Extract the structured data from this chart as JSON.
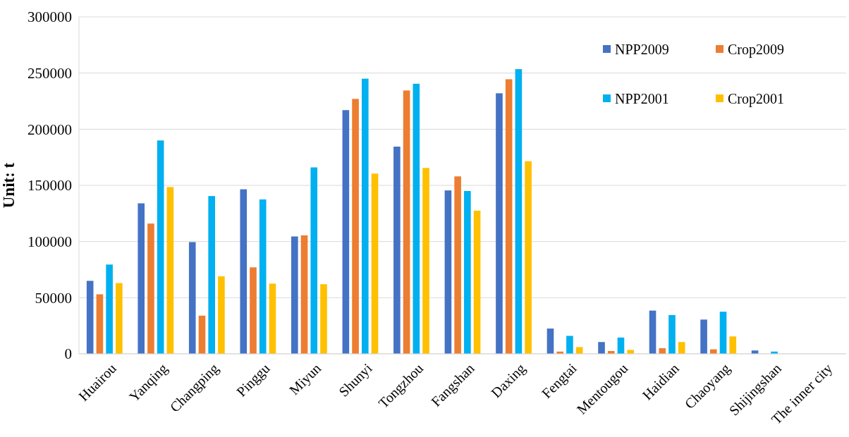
{
  "chart_data": {
    "type": "bar",
    "ylabel": "Unit: t",
    "categories": [
      "Huairou",
      "Yanqing",
      "Changping",
      "Pinggu",
      "Miyun",
      "Shunyi",
      "Tongzhou",
      "Fangshan",
      "Daxing",
      "Fengtai",
      "Mentougou",
      "Haidian",
      "Chaoyang",
      "Shijingshan",
      "The inner city"
    ],
    "series": [
      {
        "name": "NPP2009",
        "color": "#4472c4",
        "values": [
          65000,
          134000,
          99500,
          146500,
          104500,
          217000,
          184500,
          145500,
          232000,
          22500,
          10500,
          38500,
          30500,
          3000,
          0
        ]
      },
      {
        "name": "Crop2009",
        "color": "#ed7d31",
        "values": [
          53000,
          116000,
          34000,
          77000,
          105500,
          227000,
          234500,
          158000,
          244500,
          2000,
          2500,
          5000,
          4000,
          null,
          0
        ]
      },
      {
        "name": "NPP2001",
        "color": "#00b0f0",
        "values": [
          79500,
          190000,
          140500,
          137500,
          166000,
          245000,
          240500,
          145000,
          253500,
          16000,
          14500,
          34500,
          37500,
          2000,
          0
        ]
      },
      {
        "name": "Crop2001",
        "color": "#ffc000",
        "values": [
          63000,
          148500,
          69000,
          62500,
          62000,
          160500,
          165500,
          127500,
          171500,
          6000,
          3500,
          10500,
          15500,
          null,
          0
        ]
      }
    ],
    "ylim": [
      0,
      300000
    ],
    "yticks": [
      0,
      50000,
      100000,
      150000,
      200000,
      250000,
      300000
    ],
    "grid": "y",
    "legend": "top right"
  }
}
